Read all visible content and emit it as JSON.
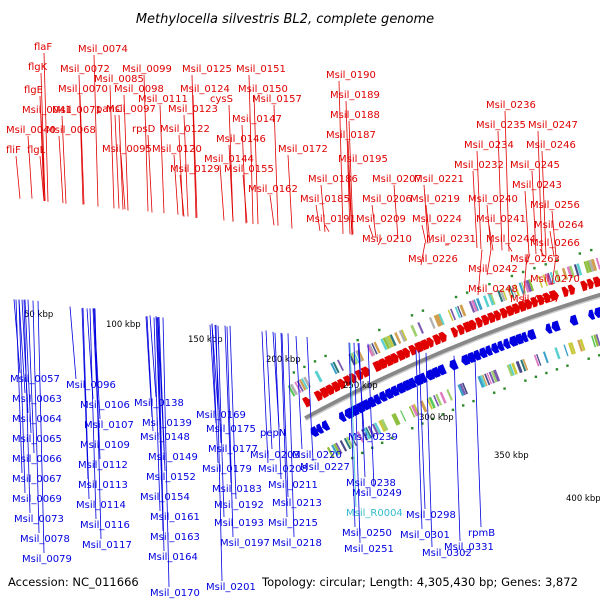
{
  "title": "Methylocella silvestris BL2, complete genome",
  "accession": "Accession: NC_011666",
  "topology": "Topology: circular; Length: 4,305,430 bp; Genes: 3,872",
  "colors": {
    "forward": "#e00000",
    "reverse": "#0000e0",
    "highlight": "#33bbcc",
    "backbone": "#888888"
  },
  "kbp_ticks": [
    "50 kbp",
    "100 kbp",
    "150 kbp",
    "200 kbp",
    "250 kbp",
    "300 kbp",
    "350 kbp",
    "400 kbp"
  ],
  "forward_labels": [
    "flaF",
    "flgK",
    "flgE",
    "Msil_0041",
    "Msil_0040",
    "fliF",
    "flgL",
    "Msil_0074",
    "Msil_0072",
    "Msil_0070",
    "Msil_0071",
    "Msil_0068",
    "Msil_0085",
    "panC",
    "Msil_0099",
    "Msil_0098",
    "Msil_0097",
    "rpsD",
    "Msil_0095",
    "Msil_0111",
    "Msil_0125",
    "Msil_0124",
    "Msil_0123",
    "Msil_0122",
    "Msil_0120",
    "Msil_0129",
    "Msil_0151",
    "Msil_0150",
    "cysS",
    "Msil_0157",
    "Msil_0147",
    "Msil_0146",
    "Msil_0144",
    "Msil_0155",
    "Msil_0162",
    "Msil_0172",
    "Msil_0190",
    "Msil_0189",
    "Msil_0188",
    "Msil_0187",
    "Msil_0195",
    "Msil_0186",
    "Msil_0185",
    "Msil_0191",
    "Msil_0207",
    "Msil_0206",
    "Msil_0209",
    "Msil_0210",
    "Msil_0236",
    "Msil_0235",
    "Msil_0247",
    "Msil_0234",
    "Msil_0246",
    "Msil_0232",
    "Msil_0245",
    "Msil_0221",
    "Msil_0243",
    "Msil_0219",
    "Msil_0240",
    "Msil_0256",
    "Msil_0224",
    "Msil_0241",
    "Msil_0264",
    "Msil_0231",
    "Msil_0244",
    "Msil_0266",
    "Msil_0226",
    "Msil_0263",
    "Msil_0242",
    "Msil_0270",
    "Msil_0248",
    "Msil_0267"
  ],
  "reverse_labels": [
    "Msil_0057",
    "Msil_0063",
    "Msil_0064",
    "Msil_0065",
    "Msil_0066",
    "Msil_0067",
    "Msil_0069",
    "Msil_0073",
    "Msil_0078",
    "Msil_0079",
    "Msil_0096",
    "Msil_0106",
    "Msil_0107",
    "Msil_0109",
    "Msil_0112",
    "Msil_0113",
    "Msil_0114",
    "Msil_0116",
    "Msil_0117",
    "Msil_0138",
    "Msil_0139",
    "Msil_0148",
    "Msil_0149",
    "Msil_0152",
    "Msil_0154",
    "Msil_0161",
    "Msil_0163",
    "Msil_0164",
    "Msil_0170",
    "Msil_0169",
    "Msil_0175",
    "Msil_0177",
    "Msil_0179",
    "Msil_0183",
    "Msil_0192",
    "Msil_0193",
    "Msil_0197",
    "Msil_0201",
    "pepN",
    "Msil_0203",
    "Msil_0208",
    "Msil_0211",
    "Msil_0213",
    "Msil_0215",
    "Msil_0218",
    "Msil_0220",
    "Msil_0227",
    "Msil_0239",
    "Msil_0238",
    "Msil_0249",
    "Msil_R0004",
    "Msil_0250",
    "Msil_0251",
    "Msil_0298",
    "Msil_0301",
    "Msil_0302",
    "rpmB",
    "Msil_0331"
  ]
}
